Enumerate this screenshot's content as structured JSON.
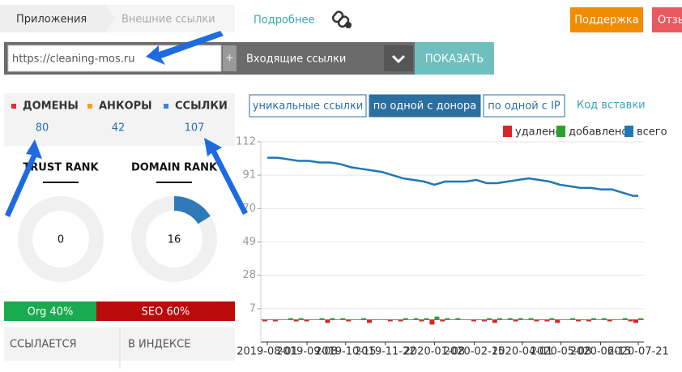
{
  "header": {
    "breadcrumbs": [
      "Приложения",
      "Внешние ссылки"
    ],
    "more_link": "Подробнее",
    "buttons": [
      "Поддержка",
      "Отзы"
    ]
  },
  "search": {
    "url": "https://cleaning-mos.ru",
    "mode": "Входящие ссылки",
    "submit": "ПОКАЗАТЬ"
  },
  "stats": [
    {
      "label": "ДОМЕНЫ",
      "value": 80,
      "color": "#e03030"
    },
    {
      "label": "АНКОРЫ",
      "value": 42,
      "color": "#f0a020"
    },
    {
      "label": "ССЫЛКИ",
      "value": 107,
      "color": "#4a7fd0"
    }
  ],
  "ranks": [
    {
      "label": "TRUST RANK",
      "value": 0,
      "range": [
        0,
        100
      ]
    },
    {
      "label": "DOMAIN RANK",
      "value": 16,
      "range": [
        0,
        100
      ]
    }
  ],
  "traffic": [
    {
      "label": "Org 40%",
      "value": 40,
      "color": "#1aaa50"
    },
    {
      "label": "SEO 60%",
      "value": 60,
      "color": "#bb0a0a"
    }
  ],
  "table_headers": [
    "ССЫЛАЕТСЯ",
    "В ИНДЕКСЕ"
  ],
  "tabs": [
    "уникальные ссылки",
    "по одной с донора",
    "по одной с IP"
  ],
  "active_tab": 1,
  "embed_link": "Код вставки",
  "chart_data": {
    "type": "bar-line",
    "x": [
      "2019-08-01",
      "2019-08-11",
      "2019-08-21",
      "2019-08-31",
      "2019-09-10",
      "2019-09-20",
      "2019-09-30",
      "2019-10-10",
      "2019-10-20",
      "2019-10-30",
      "2019-11-09",
      "2019-11-19",
      "2019-11-29",
      "2019-12-09",
      "2019-12-19",
      "2019-12-29",
      "2020-01-08",
      "2020-01-18",
      "2020-01-28",
      "2020-02-07",
      "2020-02-17",
      "2020-02-27",
      "2020-03-08",
      "2020-03-18",
      "2020-03-28",
      "2020-04-07",
      "2020-04-17",
      "2020-04-27",
      "2020-05-07",
      "2020-05-17",
      "2020-05-27",
      "2020-06-06",
      "2020-06-16",
      "2020-06-26",
      "2020-07-06",
      "2020-07-16",
      "2020-07-21"
    ],
    "series": [
      {
        "name": "удалено",
        "color": "#d62728",
        "kind": "bar",
        "values": [
          -1,
          -1,
          0,
          -1,
          -1,
          0,
          -2,
          0,
          -1,
          0,
          -2,
          0,
          -1,
          -1,
          0,
          -1,
          -3,
          -1,
          0,
          0,
          -1,
          -1,
          -2,
          0,
          -1,
          0,
          -1,
          -1,
          -2,
          0,
          -1,
          -1,
          0,
          -1,
          0,
          -1,
          -2
        ]
      },
      {
        "name": "добавлено",
        "color": "#2ca02c",
        "kind": "bar",
        "values": [
          0,
          0,
          1,
          1,
          0,
          1,
          1,
          1,
          0,
          1,
          0,
          0,
          0,
          1,
          1,
          1,
          2,
          1,
          1,
          0,
          0,
          1,
          1,
          1,
          1,
          1,
          0,
          1,
          0,
          1,
          0,
          1,
          1,
          0,
          1,
          0,
          1
        ]
      },
      {
        "name": "всего",
        "color": "#1f77b4",
        "kind": "line",
        "values": [
          102,
          102,
          101,
          100,
          100,
          99,
          99,
          98,
          96,
          95,
          94,
          93,
          91,
          89,
          88,
          87,
          85,
          87,
          87,
          87,
          88,
          86,
          86,
          87,
          88,
          89,
          88,
          87,
          85,
          84,
          83,
          83,
          82,
          82,
          80,
          78,
          78
        ]
      }
    ],
    "xlim": [
      "2019-08-01",
      "2020-07-21"
    ],
    "xticks": [
      "2019-08-01",
      "2019-09-08",
      "2019-10-15",
      "2019-11-22",
      "2020-01-08",
      "2020-02-15",
      "2020-04-01",
      "2020-05-08",
      "2020-06-15",
      "2020-07-21"
    ],
    "ylim": [
      -14,
      112
    ],
    "yticks": [
      7,
      28,
      49,
      70,
      91,
      112
    ],
    "grid": true,
    "legend": "top-right"
  }
}
